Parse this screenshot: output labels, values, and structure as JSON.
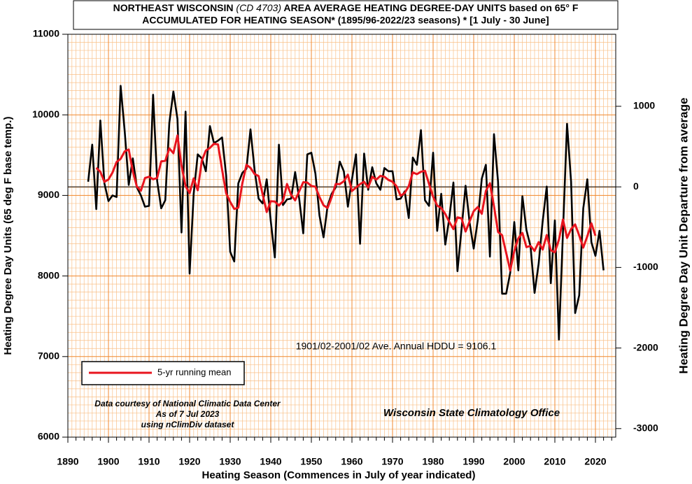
{
  "chart_data": {
    "type": "line",
    "title": [
      "NORTHEAST WISCONSIN",
      "(CD 4703)",
      "AREA AVERAGE HEATING DEGREE-DAY UNITS based on 65° F"
    ],
    "subtitle": "ACCUMULATED FOR HEATING SEASON*  (1895/96-2022/23 seasons) * [1 July - 30 June]",
    "xlabel": "Heating Season (Commences in July of year indicated)",
    "ylabel": "Heating Degree Day Units (65 deg F base temp.)",
    "y2label": "Heating Degree Day Unit Departure from average",
    "x": [
      1895,
      1896,
      1897,
      1898,
      1899,
      1900,
      1901,
      1902,
      1903,
      1904,
      1905,
      1906,
      1907,
      1908,
      1909,
      1910,
      1911,
      1912,
      1913,
      1914,
      1915,
      1916,
      1917,
      1918,
      1919,
      1920,
      1921,
      1922,
      1923,
      1924,
      1925,
      1926,
      1927,
      1928,
      1929,
      1930,
      1931,
      1932,
      1933,
      1934,
      1935,
      1936,
      1937,
      1938,
      1939,
      1940,
      1941,
      1942,
      1943,
      1944,
      1945,
      1946,
      1947,
      1948,
      1949,
      1950,
      1951,
      1952,
      1953,
      1954,
      1955,
      1956,
      1957,
      1958,
      1959,
      1960,
      1961,
      1962,
      1963,
      1964,
      1965,
      1966,
      1967,
      1968,
      1969,
      1970,
      1971,
      1972,
      1973,
      1974,
      1975,
      1976,
      1977,
      1978,
      1979,
      1980,
      1981,
      1982,
      1983,
      1984,
      1985,
      1986,
      1987,
      1988,
      1989,
      1990,
      1991,
      1992,
      1993,
      1994,
      1995,
      1996,
      1997,
      1998,
      1999,
      2000,
      2001,
      2002,
      2003,
      2004,
      2005,
      2006,
      2007,
      2008,
      2009,
      2010,
      2011,
      2012,
      2013,
      2014,
      2015,
      2016,
      2017,
      2018,
      2019,
      2020,
      2021,
      2022
    ],
    "series": [
      {
        "color": "#000000",
        "values": [
          9170,
          9630,
          8830,
          9930,
          9150,
          8930,
          9000,
          8980,
          10360,
          9800,
          9130,
          9460,
          9100,
          9000,
          8860,
          8870,
          10250,
          9180,
          8840,
          8940,
          9900,
          10290,
          9950,
          8540,
          10040,
          8030,
          9020,
          9510,
          9460,
          9300,
          9860,
          9650,
          9680,
          9720,
          9250,
          8300,
          8180,
          9150,
          9280,
          9330,
          9820,
          9320,
          8960,
          8900,
          9200,
          8680,
          8230,
          9630,
          8880,
          8950,
          8960,
          9290,
          8960,
          8530,
          9510,
          9530,
          9270,
          8750,
          8480,
          8870,
          9020,
          9100,
          9420,
          9300,
          8860,
          9200,
          9510,
          8400,
          9520,
          9070,
          9350,
          9150,
          9070,
          9340,
          9300,
          9300,
          8950,
          8960,
          9050,
          8720,
          9470,
          9380,
          9810,
          8940,
          8870,
          9530,
          8560,
          9020,
          8390,
          8720,
          9160,
          8060,
          8580,
          9120,
          8660,
          8340,
          8690,
          9210,
          9380,
          8240,
          9760,
          9170,
          7780,
          7780,
          8040,
          8670,
          8070,
          8990,
          8570,
          8370,
          7790,
          8150,
          8680,
          9110,
          7910,
          8690,
          7210,
          8550,
          9890,
          9170,
          7540,
          7760,
          8840,
          9200,
          8420,
          8250,
          8560,
          8070
        ]
      },
      {
        "name": "5-yr running mean",
        "color": "#e8141e",
        "values": [
          null,
          null,
          9342,
          9294,
          9168,
          9198,
          9284,
          9414,
          9454,
          9546,
          9570,
          9298,
          9110,
          9058,
          9216,
          9232,
          9200,
          9216,
          9422,
          9430,
          9584,
          9524,
          9744,
          9370,
          9116,
          9028,
          9212,
          9064,
          9430,
          9556,
          9590,
          9642,
          9632,
          9320,
          9026,
          8920,
          8832,
          8848,
          9152,
          9380,
          9342,
          9266,
          9240,
          9012,
          8794,
          8928,
          8924,
          8874,
          8930,
          9142,
          9008,
          8938,
          9050,
          9164,
          9160,
          9118,
          9108,
          8980,
          8878,
          8844,
          8978,
          9142,
          9140,
          9176,
          9258,
          9054,
          9098,
          9140,
          9170,
          9098,
          9232,
          9196,
          9242,
          9232,
          9192,
          9170,
          9112,
          8996,
          9030,
          9116,
          9286,
          9264,
          9294,
          9306,
          9142,
          8984,
          8874,
          8844,
          8770,
          8670,
          8582,
          8728,
          8716,
          8552,
          8678,
          8804,
          8856,
          8772,
          9056,
          9152,
          8866,
          8546,
          8506,
          8288,
          8068,
          8310,
          8468,
          8534,
          8358,
          8374,
          8312,
          8420,
          8328,
          8508,
          8320,
          8294,
          8450,
          8702,
          8472,
          8582,
          8640,
          8502,
          8352,
          8494,
          8654,
          8500,
          null,
          null
        ]
      }
    ],
    "xlim": [
      1890,
      2025
    ],
    "xticks": [
      1890,
      1900,
      1910,
      1920,
      1930,
      1940,
      1950,
      1960,
      1970,
      1980,
      1990,
      2000,
      2010,
      2020
    ],
    "ylim": [
      6000,
      11000
    ],
    "yticks": [
      6000,
      7000,
      8000,
      9000,
      10000,
      11000
    ],
    "y2lim": [
      -3106.1,
      1893.9
    ],
    "y2ticks": [
      -3000,
      -2000,
      -1000,
      0,
      1000
    ],
    "average": 9106.1,
    "average_label": "1901/02-2001/02 Ave. Annual HDDU = 9106.1",
    "annotations": [
      "Data courtesy of National Climatic Data Center",
      "As of 7 Jul 2023",
      "using nClimDiv dataset",
      "Wisconsin State Climatology Office"
    ],
    "grid": true,
    "legend": "lower left"
  }
}
